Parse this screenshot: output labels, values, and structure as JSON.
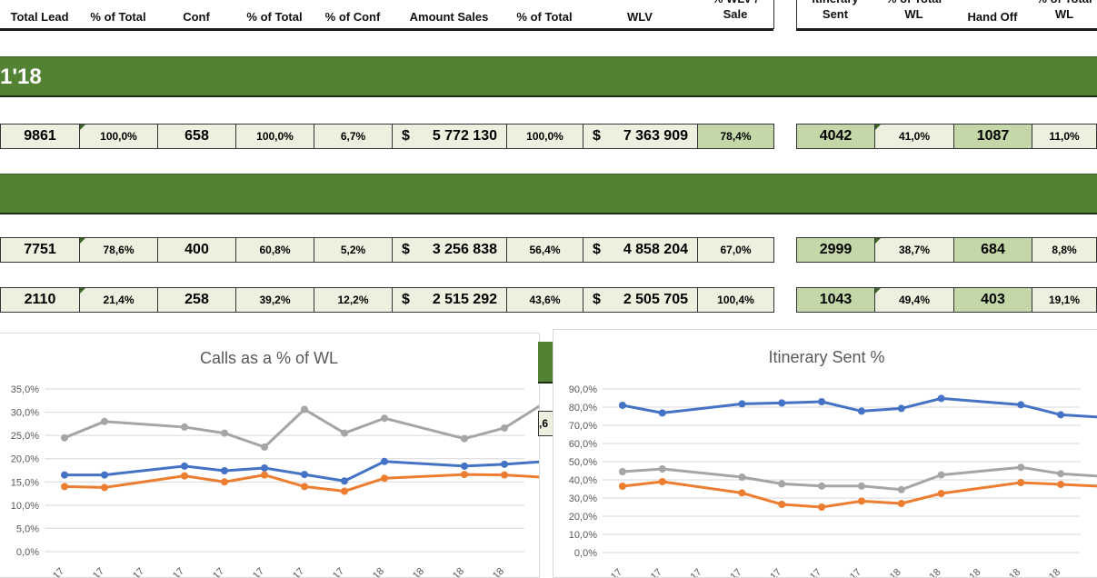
{
  "header": {
    "left": [
      {
        "label": "Total Lead"
      },
      {
        "label": "% of Total"
      },
      {
        "label": "Conf"
      },
      {
        "label": "% of Total"
      },
      {
        "label": "% of Conf"
      },
      {
        "label": "Amount Sales"
      },
      {
        "label": "% of Total"
      },
      {
        "label": "WLV"
      },
      {
        "label": "% WLV /",
        "label2": "Sale"
      }
    ],
    "right": [
      {
        "label": "Itinerary",
        "label2": "Sent"
      },
      {
        "label": "% of Total",
        "label2": "WL"
      },
      {
        "label": "Hand Off"
      },
      {
        "label": "% of Total",
        "label2": "WL"
      }
    ]
  },
  "bands": [
    {
      "text": "1'18"
    },
    {
      "text": ""
    }
  ],
  "rows": [
    {
      "left": [
        "9861",
        "100,0%",
        "658",
        "100,0%",
        "6,7%",
        "5 772 130",
        "100,0%",
        "7 363 909",
        "78,4%"
      ],
      "right": [
        "4042",
        "41,0%",
        "1087",
        "11,0%"
      ]
    },
    {
      "left": [
        "7751",
        "78,6%",
        "400",
        "60,8%",
        "5,2%",
        "3 256 838",
        "56,4%",
        "4 858 204",
        "67,0%"
      ],
      "right": [
        "2999",
        "38,7%",
        "684",
        "8,8%"
      ]
    },
    {
      "left": [
        "2110",
        "21,4%",
        "258",
        "39,2%",
        "12,2%",
        "2 515 292",
        "43,6%",
        "2 505 705",
        "100,4%"
      ],
      "right": [
        "1043",
        "49,4%",
        "403",
        "19,1%"
      ]
    }
  ],
  "currency_symbol": "$",
  "hidden_cell_fragment": ",6",
  "colors": {
    "band": "#548235",
    "cell": "#ebf1de",
    "cell_dark": "#c4d7a8",
    "blue": "#4472c4",
    "orange": "#ed7d31",
    "gray": "#a5a5a5"
  },
  "chart_data": [
    {
      "type": "line",
      "title": "Calls as a % of WL",
      "ylim": [
        0,
        35
      ],
      "yticks": [
        "0,0%",
        "5,0%",
        "10,0%",
        "15,0%",
        "20,0%",
        "25,0%",
        "30,0%",
        "35,0%"
      ],
      "xtick_labels": [
        "17",
        "17",
        "17",
        "17",
        "17",
        "17",
        "17",
        "17",
        "18",
        "18",
        "18",
        "18"
      ],
      "x": [
        1,
        2,
        4,
        5,
        6,
        7,
        8,
        9,
        11,
        12,
        13
      ],
      "series": [
        {
          "color": "#a5a5a5",
          "values": [
            24.5,
            28.0,
            26.8,
            25.5,
            22.5,
            30.6,
            25.5,
            28.7,
            24.3,
            26.6,
            32.0
          ]
        },
        {
          "color": "#4472c4",
          "values": [
            16.5,
            16.5,
            18.4,
            17.4,
            18.0,
            16.6,
            15.2,
            19.4,
            18.4,
            18.8,
            19.4
          ]
        },
        {
          "color": "#ed7d31",
          "values": [
            14.0,
            13.8,
            16.3,
            15.0,
            16.5,
            14.0,
            13.0,
            15.8,
            16.6,
            16.5,
            16.0
          ]
        }
      ]
    },
    {
      "type": "line",
      "title": "Itinerary Sent %",
      "ylim": [
        0,
        90
      ],
      "yticks": [
        "0,0%",
        "10,0%",
        "20,0%",
        "30,0%",
        "40,0%",
        "50,0%",
        "60,0%",
        "70,0%",
        "80,0%",
        "90,0%"
      ],
      "xtick_labels": [
        "17",
        "17",
        "17",
        "17",
        "17",
        "17",
        "17",
        "18",
        "18",
        "18",
        "18",
        "18"
      ],
      "x": [
        1,
        2,
        4,
        5,
        6,
        7,
        8,
        9,
        11,
        12,
        13
      ],
      "series": [
        {
          "color": "#4472c4",
          "values": [
            81.0,
            76.8,
            81.8,
            82.3,
            83.0,
            77.8,
            79.3,
            84.8,
            81.3,
            75.8,
            74.5
          ]
        },
        {
          "color": "#a5a5a5",
          "values": [
            44.5,
            46.0,
            41.5,
            37.8,
            36.6,
            36.6,
            34.6,
            42.7,
            46.9,
            43.4,
            42.0
          ]
        },
        {
          "color": "#ed7d31",
          "values": [
            36.5,
            39.0,
            32.8,
            26.5,
            25.0,
            28.3,
            27.0,
            32.5,
            38.5,
            37.5,
            36.5
          ]
        }
      ]
    }
  ]
}
